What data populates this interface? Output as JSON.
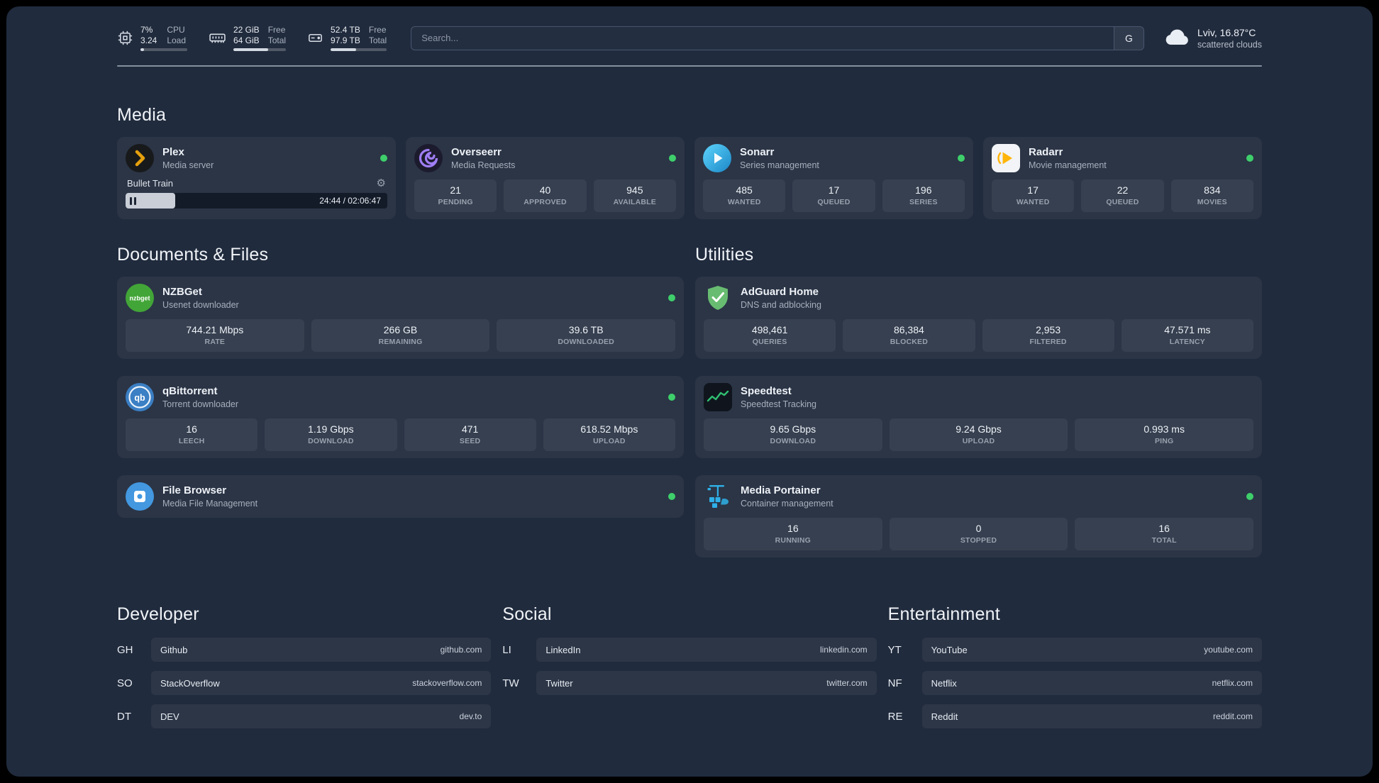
{
  "topbar": {
    "monitors": [
      {
        "id": "cpu",
        "rows": [
          [
            "7%",
            "CPU"
          ],
          [
            "3.24",
            "Load"
          ]
        ],
        "progress": 7
      },
      {
        "id": "ram",
        "rows": [
          [
            "22 GiB",
            "Free"
          ],
          [
            "64 GiB",
            "Total"
          ]
        ],
        "progress": 66
      },
      {
        "id": "disk",
        "rows": [
          [
            "52.4 TB",
            "Free"
          ],
          [
            "97.9 TB",
            "Total"
          ]
        ],
        "progress": 46
      }
    ],
    "search": {
      "placeholder": "Search...",
      "engine_label": "G"
    },
    "weather": {
      "location": "Lviv, 16.87°C",
      "condition": "scattered clouds"
    }
  },
  "sections": {
    "media": {
      "title": "Media",
      "apps": [
        {
          "id": "plex",
          "name": "Plex",
          "subtitle": "Media server",
          "online": true,
          "player": {
            "track": "Bullet Train",
            "time": "24:44 / 02:06:47",
            "progress_percent": 19
          }
        },
        {
          "id": "overseerr",
          "name": "Overseerr",
          "subtitle": "Media Requests",
          "online": true,
          "stats": [
            {
              "value": "21",
              "label": "PENDING"
            },
            {
              "value": "40",
              "label": "APPROVED"
            },
            {
              "value": "945",
              "label": "AVAILABLE"
            }
          ]
        },
        {
          "id": "sonarr",
          "name": "Sonarr",
          "subtitle": "Series management",
          "online": true,
          "stats": [
            {
              "value": "485",
              "label": "WANTED"
            },
            {
              "value": "17",
              "label": "QUEUED"
            },
            {
              "value": "196",
              "label": "SERIES"
            }
          ]
        },
        {
          "id": "radarr",
          "name": "Radarr",
          "subtitle": "Movie management",
          "online": true,
          "stats": [
            {
              "value": "17",
              "label": "WANTED"
            },
            {
              "value": "22",
              "label": "QUEUED"
            },
            {
              "value": "834",
              "label": "MOVIES"
            }
          ]
        }
      ]
    },
    "documents": {
      "title": "Documents & Files",
      "apps": [
        {
          "id": "nzbget",
          "name": "NZBGet",
          "subtitle": "Usenet downloader",
          "online": true,
          "stats": [
            {
              "value": "744.21 Mbps",
              "label": "RATE"
            },
            {
              "value": "266 GB",
              "label": "REMAINING"
            },
            {
              "value": "39.6 TB",
              "label": "DOWNLOADED"
            }
          ]
        },
        {
          "id": "qbittorrent",
          "name": "qBittorrent",
          "subtitle": "Torrent downloader",
          "online": true,
          "stats": [
            {
              "value": "16",
              "label": "LEECH"
            },
            {
              "value": "1.19 Gbps",
              "label": "DOWNLOAD"
            },
            {
              "value": "471",
              "label": "SEED"
            },
            {
              "value": "618.52 Mbps",
              "label": "UPLOAD"
            }
          ]
        },
        {
          "id": "filebrowser",
          "name": "File Browser",
          "subtitle": "Media File Management",
          "online": true,
          "stats": []
        }
      ]
    },
    "utilities": {
      "title": "Utilities",
      "apps": [
        {
          "id": "adguard",
          "name": "AdGuard Home",
          "subtitle": "DNS and adblocking",
          "online": false,
          "stats": [
            {
              "value": "498,461",
              "label": "QUERIES"
            },
            {
              "value": "86,384",
              "label": "BLOCKED"
            },
            {
              "value": "2,953",
              "label": "FILTERED"
            },
            {
              "value": "47.571 ms",
              "label": "LATENCY"
            }
          ]
        },
        {
          "id": "speedtest",
          "name": "Speedtest",
          "subtitle": "Speedtest Tracking",
          "online": false,
          "stats": [
            {
              "value": "9.65 Gbps",
              "label": "DOWNLOAD"
            },
            {
              "value": "9.24 Gbps",
              "label": "UPLOAD"
            },
            {
              "value": "0.993 ms",
              "label": "PING"
            }
          ]
        },
        {
          "id": "portainer",
          "name": "Media Portainer",
          "subtitle": "Container management",
          "online": true,
          "stats": [
            {
              "value": "16",
              "label": "RUNNING"
            },
            {
              "value": "0",
              "label": "STOPPED"
            },
            {
              "value": "16",
              "label": "TOTAL"
            }
          ]
        }
      ]
    }
  },
  "bookmarks": [
    {
      "id": "developer",
      "title": "Developer",
      "items": [
        {
          "abbr": "GH",
          "name": "Github",
          "url": "github.com"
        },
        {
          "abbr": "SO",
          "name": "StackOverflow",
          "url": "stackoverflow.com"
        },
        {
          "abbr": "DT",
          "name": "DEV",
          "url": "dev.to"
        }
      ]
    },
    {
      "id": "social",
      "title": "Social",
      "items": [
        {
          "abbr": "LI",
          "name": "LinkedIn",
          "url": "linkedin.com"
        },
        {
          "abbr": "TW",
          "name": "Twitter",
          "url": "twitter.com"
        }
      ]
    },
    {
      "id": "entertainment",
      "title": "Entertainment",
      "items": [
        {
          "abbr": "YT",
          "name": "YouTube",
          "url": "youtube.com"
        },
        {
          "abbr": "NF",
          "name": "Netflix",
          "url": "netflix.com"
        },
        {
          "abbr": "RE",
          "name": "Reddit",
          "url": "reddit.com"
        }
      ]
    }
  ],
  "colors": {
    "status_online": "#3ecf6b"
  }
}
